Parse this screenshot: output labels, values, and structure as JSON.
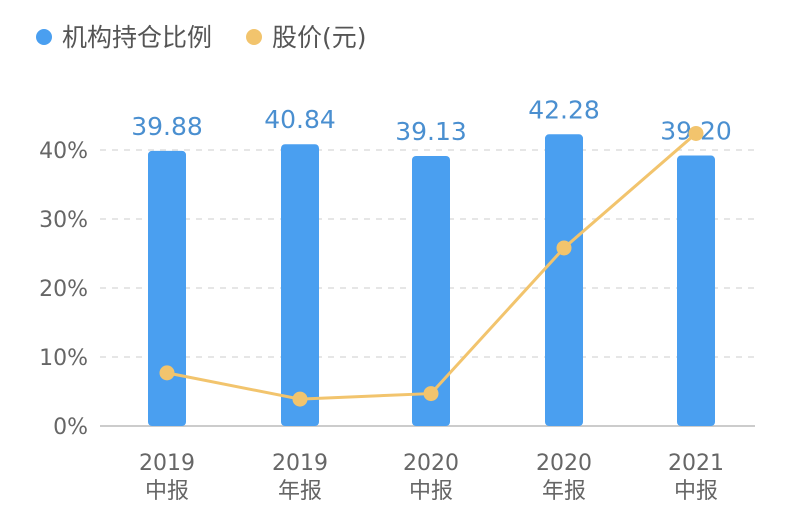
{
  "chart_data": {
    "type": "bar",
    "title": "",
    "categories": [
      [
        "2019",
        "中报"
      ],
      [
        "2019",
        "年报"
      ],
      [
        "2020",
        "中报"
      ],
      [
        "2020",
        "年报"
      ],
      [
        "2021",
        "中报"
      ]
    ],
    "series": [
      {
        "name": "机构持仓比例",
        "type": "bar",
        "color": "#4a9ff0",
        "values": [
          39.88,
          40.84,
          39.13,
          42.28,
          39.2
        ],
        "labels": [
          "39.88",
          "40.84",
          "39.13",
          "42.28",
          "39.20"
        ]
      },
      {
        "name": "股价(元)",
        "type": "line",
        "color": "#f2c46d",
        "values": [
          7.7,
          3.9,
          4.7,
          25.8,
          42.4
        ]
      }
    ],
    "y_axis": {
      "ticks": [
        "0%",
        "10%",
        "20%",
        "30%",
        "40%"
      ],
      "tick_values": [
        0,
        10,
        20,
        30,
        40
      ],
      "ylim": [
        0,
        46
      ]
    },
    "legend": {
      "position": "top-left"
    },
    "grid": true
  }
}
